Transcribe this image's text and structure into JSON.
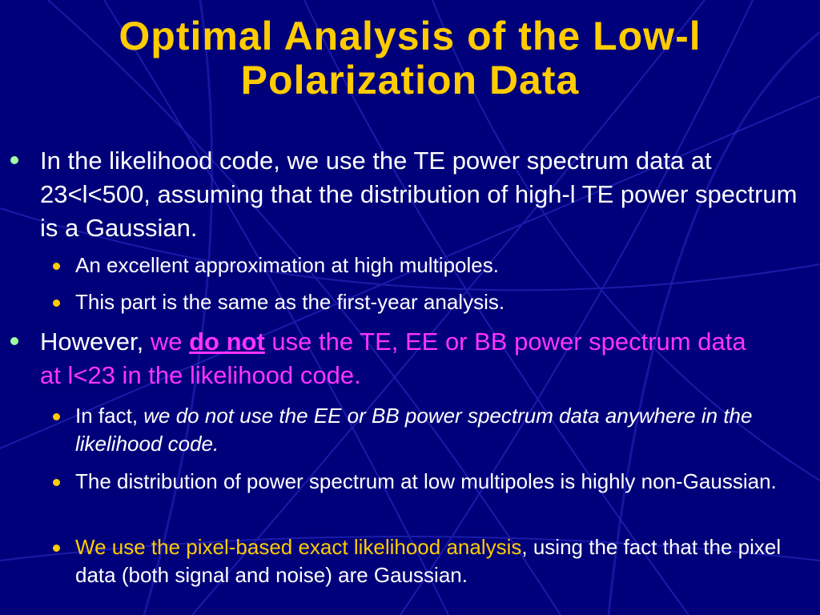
{
  "title": "Optimal Analysis of the Low-l Polarization Data",
  "bullets": [
    {
      "text": "In the likelihood code, we use the TE power spectrum data at 23<l<500, assuming that the distribution of high-l TE power spectrum is a Gaussian."
    },
    {
      "text": "An excellent approximation at high multipoles."
    },
    {
      "text": "This part is the same as the first-year analysis."
    },
    {
      "lead": "However, ",
      "mag1": "we ",
      "emph": "do not",
      "mag2": " use the TE, EE or BB power spectrum data at l<23 in the likelihood code."
    },
    {
      "lead": "In fact, ",
      "italic": "we do not use the EE or BB power spectrum data anywhere in the likelihood code."
    },
    {
      "text": "The distribution of power spectrum at low multipoles is highly non-Gaussian."
    },
    {
      "highlight": "We use the pixel-based exact likelihood analysis",
      "rest": ", using the fact that the pixel data (both signal and noise) are Gaussian."
    }
  ],
  "colors": {
    "background": "#00007a",
    "title": "#ffcc00",
    "text": "#ffffff",
    "emphasis": "#ff33ff",
    "highlight": "#ffcc00",
    "bullet_l1": "#9cffa0",
    "bullet_l2": "#ffcc00"
  }
}
